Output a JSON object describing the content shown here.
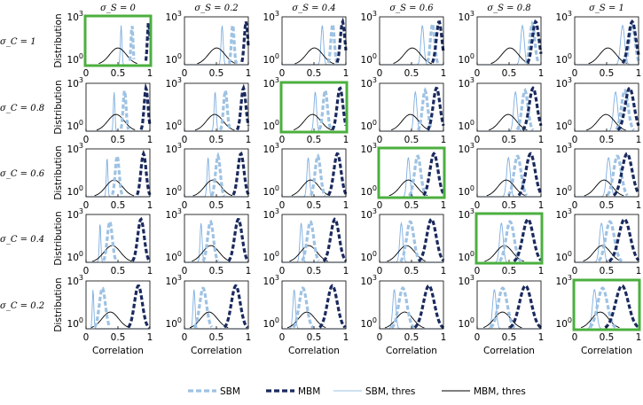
{
  "chart_data": {
    "type": "line",
    "grid_rows": 5,
    "grid_cols": 6,
    "col_headers": [
      "σ_S = 0",
      "σ_S = 0.2",
      "σ_S = 0.4",
      "σ_S = 0.6",
      "σ_S = 0.8",
      "σ_S = 1"
    ],
    "row_headers": [
      "σ_C = 1",
      "σ_C = 0.8",
      "σ_C = 0.6",
      "σ_C = 0.4",
      "σ_C = 0.2"
    ],
    "col_sigma_s": [
      0,
      0.2,
      0.4,
      0.6,
      0.8,
      1
    ],
    "row_sigma_c": [
      1,
      0.8,
      0.6,
      0.4,
      0.2
    ],
    "ylabel": "Distribution",
    "xlabel": "Correlation",
    "xlim": [
      0,
      1
    ],
    "xticks": [
      "0",
      "0.5",
      "1"
    ],
    "yscale": "log",
    "yticks": [
      {
        "base": "10",
        "exp": "0"
      },
      {
        "base": "10",
        "exp": "3"
      }
    ],
    "highlighted_panels": [
      [
        0,
        0
      ],
      [
        1,
        2
      ],
      [
        2,
        3
      ],
      [
        3,
        4
      ],
      [
        4,
        5
      ]
    ],
    "legend": {
      "position": "bottom",
      "entries": [
        {
          "key": "sbm",
          "label": "SBM",
          "style": "dashed-thick",
          "color": "#9ec2e3"
        },
        {
          "key": "mbm",
          "label": "MBM",
          "style": "dashed-thick",
          "color": "#1a2a5e"
        },
        {
          "key": "sbm_thres",
          "label": "SBM, thres",
          "style": "solid-thin",
          "color": "#9ec2e3"
        },
        {
          "key": "mbm_thres",
          "label": "MBM, thres",
          "style": "solid-thin",
          "color": "#000000"
        }
      ]
    },
    "colors": {
      "sbm": "#9ec2e3",
      "mbm": "#1a2a5e",
      "sbm_thres": "#7faee0",
      "mbm_thres": "#000000",
      "highlight": "#4caf3f"
    }
  }
}
